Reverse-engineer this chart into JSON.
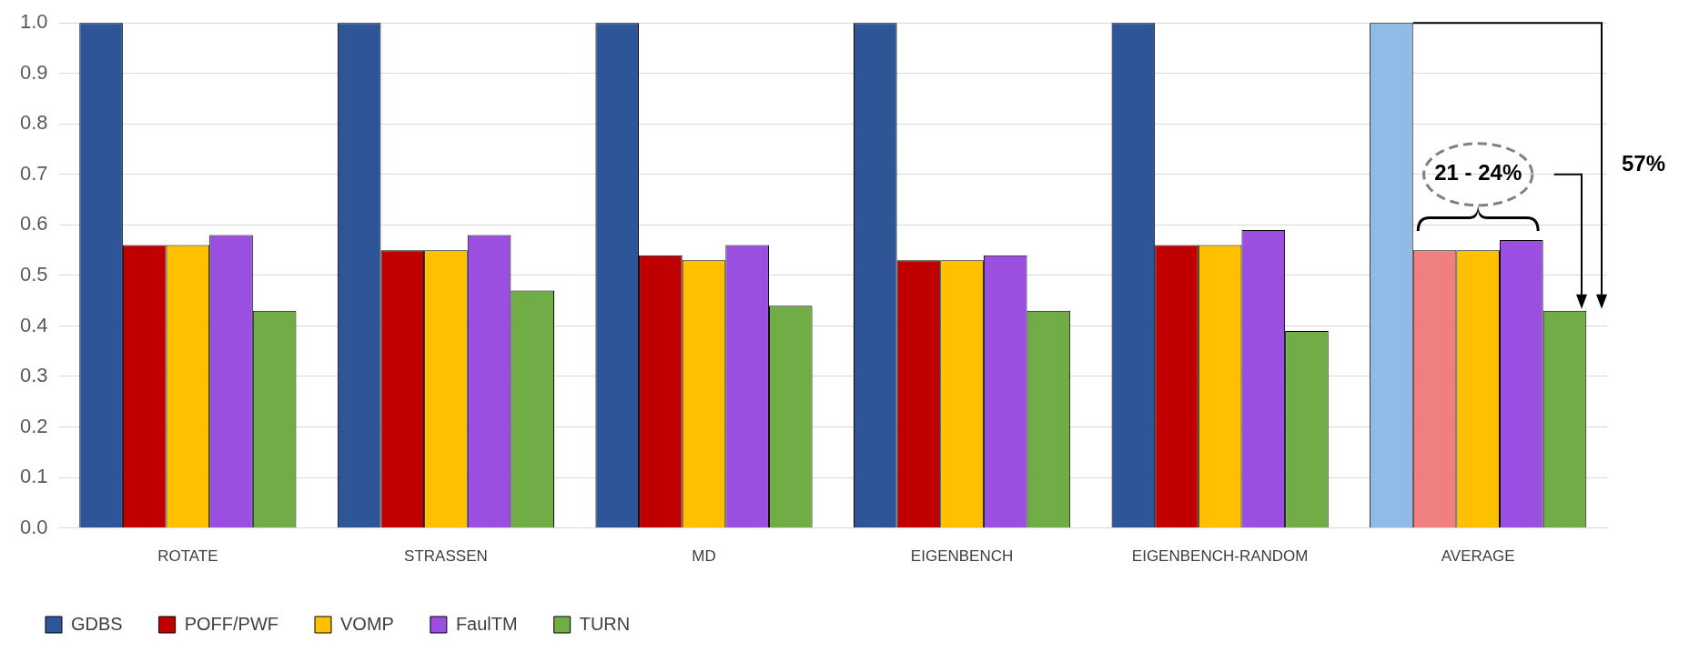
{
  "chart_data": {
    "type": "bar",
    "categories": [
      "ROTATE",
      "STRASSEN",
      "MD",
      "EIGENBENCH",
      "EIGENBENCH-RANDOM",
      "AVERAGE"
    ],
    "series": [
      {
        "name": "GDBS",
        "color": "#2e5597",
        "colors": [
          "#2e5597",
          "#2e5597",
          "#2e5597",
          "#2e5597",
          "#2e5597",
          "#8fbbe6"
        ],
        "values": [
          1.0,
          1.0,
          1.0,
          1.0,
          1.0,
          1.0
        ]
      },
      {
        "name": "POFF/PWF",
        "color": "#c00000",
        "colors": [
          "#c00000",
          "#c00000",
          "#c00000",
          "#c00000",
          "#c00000",
          "#f08080"
        ],
        "values": [
          0.56,
          0.55,
          0.54,
          0.53,
          0.56,
          0.55
        ]
      },
      {
        "name": "VOMP",
        "color": "#ffc000",
        "values": [
          0.56,
          0.55,
          0.53,
          0.53,
          0.56,
          0.55
        ]
      },
      {
        "name": "FaulTM",
        "color": "#9b4fe0",
        "values": [
          0.58,
          0.58,
          0.56,
          0.54,
          0.59,
          0.57
        ]
      },
      {
        "name": "TURN",
        "color": "#70ad47",
        "values": [
          0.43,
          0.47,
          0.44,
          0.43,
          0.39,
          0.43
        ]
      }
    ],
    "ylim": [
      0,
      1.0
    ],
    "yticks": [
      {
        "value": 0,
        "label": "0.0"
      },
      {
        "value": 0.1,
        "label": "0.1"
      },
      {
        "value": 0.2,
        "label": "0.2"
      },
      {
        "value": 0.3,
        "label": "0.3"
      },
      {
        "value": 0.4,
        "label": "0.4"
      },
      {
        "value": 0.5,
        "label": "0.5"
      },
      {
        "value": 0.6,
        "label": "0.6"
      },
      {
        "value": 0.7,
        "label": "0.7"
      },
      {
        "value": 0.8,
        "label": "0.8"
      },
      {
        "value": 0.9,
        "label": "0.9"
      },
      {
        "value": 1.0,
        "label": "1.0"
      }
    ],
    "grid": "y",
    "legend": "bottom left",
    "annotations": [
      "21 - 24%",
      "57%"
    ]
  }
}
